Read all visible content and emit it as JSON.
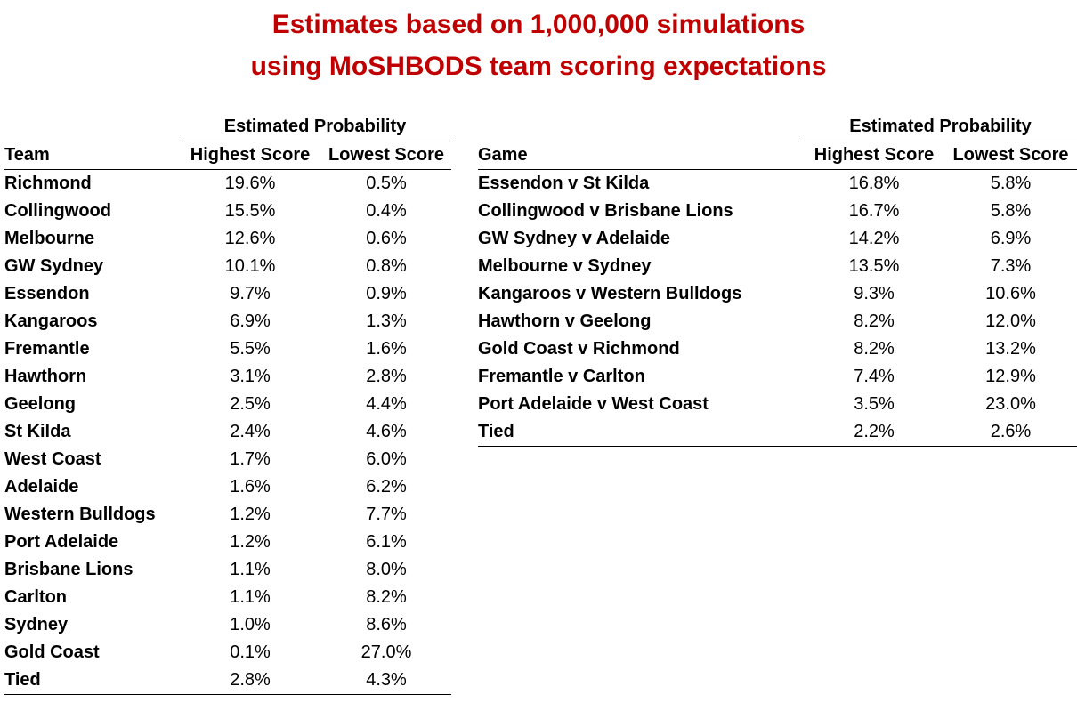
{
  "title": {
    "line1": "Estimates based on 1,000,000 simulations",
    "line2": "using MoSHBODS team scoring expectations"
  },
  "colors": {
    "title": "#c00000",
    "text": "#000000"
  },
  "team_table": {
    "group_header": "Estimated Probability",
    "columns": [
      "Team",
      "Highest Score",
      "Lowest Score"
    ],
    "rows": [
      {
        "name": "Richmond",
        "highest": "19.6%",
        "lowest": "0.5%"
      },
      {
        "name": "Collingwood",
        "highest": "15.5%",
        "lowest": "0.4%"
      },
      {
        "name": "Melbourne",
        "highest": "12.6%",
        "lowest": "0.6%"
      },
      {
        "name": "GW Sydney",
        "highest": "10.1%",
        "lowest": "0.8%"
      },
      {
        "name": "Essendon",
        "highest": "9.7%",
        "lowest": "0.9%"
      },
      {
        "name": "Kangaroos",
        "highest": "6.9%",
        "lowest": "1.3%"
      },
      {
        "name": "Fremantle",
        "highest": "5.5%",
        "lowest": "1.6%"
      },
      {
        "name": "Hawthorn",
        "highest": "3.1%",
        "lowest": "2.8%"
      },
      {
        "name": "Geelong",
        "highest": "2.5%",
        "lowest": "4.4%"
      },
      {
        "name": "St Kilda",
        "highest": "2.4%",
        "lowest": "4.6%"
      },
      {
        "name": "West Coast",
        "highest": "1.7%",
        "lowest": "6.0%"
      },
      {
        "name": "Adelaide",
        "highest": "1.6%",
        "lowest": "6.2%"
      },
      {
        "name": "Western Bulldogs",
        "highest": "1.2%",
        "lowest": "7.7%"
      },
      {
        "name": "Port Adelaide",
        "highest": "1.2%",
        "lowest": "6.1%"
      },
      {
        "name": "Brisbane Lions",
        "highest": "1.1%",
        "lowest": "8.0%"
      },
      {
        "name": "Carlton",
        "highest": "1.1%",
        "lowest": "8.2%"
      },
      {
        "name": "Sydney",
        "highest": "1.0%",
        "lowest": "8.6%"
      },
      {
        "name": "Gold Coast",
        "highest": "0.1%",
        "lowest": "27.0%"
      },
      {
        "name": "Tied",
        "highest": "2.8%",
        "lowest": "4.3%"
      }
    ]
  },
  "game_table": {
    "group_header": "Estimated Probability",
    "columns": [
      "Game",
      "Highest Score",
      "Lowest Score"
    ],
    "rows": [
      {
        "name": "Essendon v St Kilda",
        "highest": "16.8%",
        "lowest": "5.8%"
      },
      {
        "name": "Collingwood v Brisbane Lions",
        "highest": "16.7%",
        "lowest": "5.8%"
      },
      {
        "name": "GW Sydney v Adelaide",
        "highest": "14.2%",
        "lowest": "6.9%"
      },
      {
        "name": "Melbourne v Sydney",
        "highest": "13.5%",
        "lowest": "7.3%"
      },
      {
        "name": "Kangaroos v Western Bulldogs",
        "highest": "9.3%",
        "lowest": "10.6%"
      },
      {
        "name": "Hawthorn v Geelong",
        "highest": "8.2%",
        "lowest": "12.0%"
      },
      {
        "name": "Gold Coast v Richmond",
        "highest": "8.2%",
        "lowest": "13.2%"
      },
      {
        "name": "Fremantle v Carlton",
        "highest": "7.4%",
        "lowest": "12.9%"
      },
      {
        "name": "Port Adelaide v West Coast",
        "highest": "3.5%",
        "lowest": "23.0%"
      },
      {
        "name": "Tied",
        "highest": "2.2%",
        "lowest": "2.6%"
      }
    ]
  }
}
